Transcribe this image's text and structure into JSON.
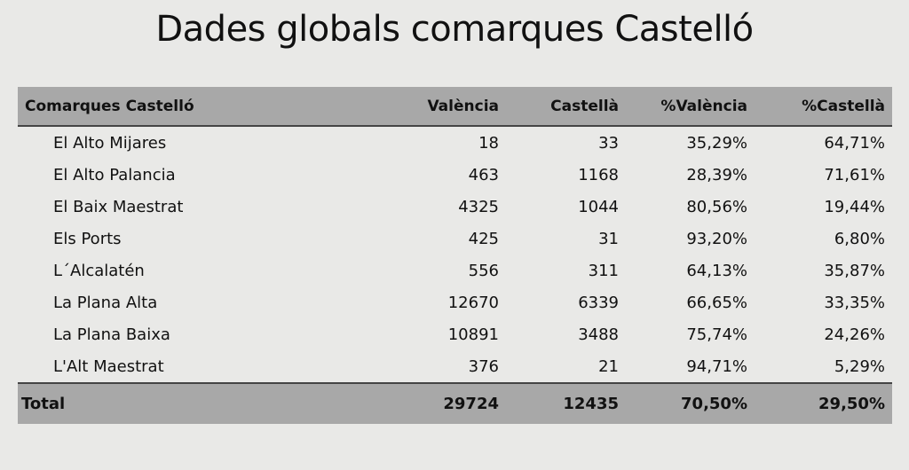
{
  "title": "Dades globals comarques Castelló",
  "table": {
    "header": [
      "Comarques Castelló",
      "València",
      "Castellà",
      "%València",
      "%Castellà"
    ],
    "rows": [
      [
        "El Alto Mijares",
        "18",
        "33",
        "35,29%",
        "64,71%"
      ],
      [
        "El Alto Palancia",
        "463",
        "1168",
        "28,39%",
        "71,61%"
      ],
      [
        "El Baix Maestrat",
        "4325",
        "1044",
        "80,56%",
        "19,44%"
      ],
      [
        "Els Ports",
        "425",
        "31",
        "93,20%",
        "6,80%"
      ],
      [
        "L´Alcalatén",
        "556",
        "311",
        "64,13%",
        "35,87%"
      ],
      [
        "La Plana Alta",
        "12670",
        "6339",
        "66,65%",
        "33,35%"
      ],
      [
        "La Plana Baixa",
        "10891",
        "3488",
        "75,74%",
        "24,26%"
      ],
      [
        "L'Alt Maestrat",
        "376",
        "21",
        "94,71%",
        "5,29%"
      ]
    ],
    "total": [
      "Total",
      "29724",
      "12435",
      "70,50%",
      "29,50%"
    ]
  }
}
